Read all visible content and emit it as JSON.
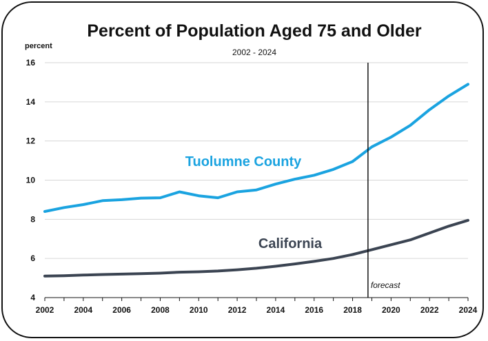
{
  "chart_data": {
    "type": "line",
    "title": "Percent of Population Aged 75 and Older",
    "subtitle": "2002 - 2024",
    "ylabel": "percent",
    "xlabel": "",
    "xlim": [
      2002,
      2024
    ],
    "ylim": [
      4,
      16
    ],
    "yticks": [
      4,
      6,
      8,
      10,
      12,
      14,
      16
    ],
    "xticks": [
      2002,
      2004,
      2006,
      2008,
      2010,
      2012,
      2014,
      2016,
      2018,
      2020,
      2022,
      2024
    ],
    "grid": true,
    "colors": {
      "tuolumne": "#1aa3e0",
      "california": "#3b4452",
      "grid": "#d6d6d6"
    },
    "series": [
      {
        "name": "Tuolumne County",
        "x": [
          2002,
          2003,
          2004,
          2005,
          2006,
          2007,
          2008,
          2009,
          2010,
          2011,
          2012,
          2013,
          2014,
          2015,
          2016,
          2017,
          2018,
          2019,
          2020,
          2021,
          2022,
          2023,
          2024
        ],
        "values": [
          8.4,
          8.6,
          8.75,
          8.95,
          9.0,
          9.08,
          9.1,
          9.4,
          9.2,
          9.1,
          9.4,
          9.5,
          9.8,
          10.05,
          10.25,
          10.55,
          10.95,
          11.7,
          12.2,
          12.8,
          13.6,
          14.3,
          14.9
        ]
      },
      {
        "name": "California",
        "x": [
          2002,
          2003,
          2004,
          2005,
          2006,
          2007,
          2008,
          2009,
          2010,
          2011,
          2012,
          2013,
          2014,
          2015,
          2016,
          2017,
          2018,
          2019,
          2020,
          2021,
          2022,
          2023,
          2024
        ],
        "values": [
          5.1,
          5.12,
          5.15,
          5.18,
          5.2,
          5.22,
          5.25,
          5.3,
          5.32,
          5.36,
          5.42,
          5.5,
          5.6,
          5.72,
          5.85,
          6.0,
          6.2,
          6.45,
          6.7,
          6.95,
          7.3,
          7.65,
          7.95
        ]
      }
    ],
    "annotations": [
      {
        "type": "vline",
        "x": 2018.8,
        "label": "forecast"
      }
    ]
  }
}
